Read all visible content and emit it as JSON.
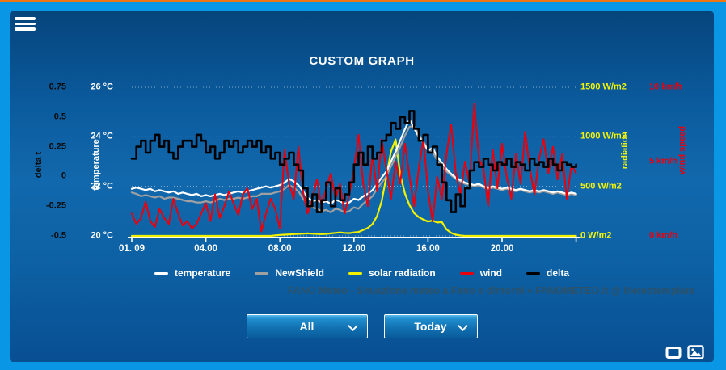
{
  "header": {
    "title": "CUSTOM GRAPH",
    "menu_icon": "hamburger-icon"
  },
  "attribution": {
    "text": "FANO Meteo - Situazione meteo a Fano e dintorni » FANOMETEO.it @ Meteotemplate"
  },
  "controls": {
    "filter_dropdown": {
      "value": "All"
    },
    "range_dropdown": {
      "value": "Today"
    }
  },
  "footer_icons": [
    {
      "name": "window-embed-icon"
    },
    {
      "name": "image-export-icon"
    }
  ],
  "colors": {
    "frame": "#0996e4",
    "top_accent": "#ec7612",
    "panel_mid": "#1268ac",
    "temperature": "#ffffff",
    "newshield": "#a0a0a0",
    "solar": "#f2f200",
    "wind": "#e8000d",
    "delta": "#000000",
    "attribution": "#32505f"
  },
  "legend": {
    "items": [
      {
        "label": "temperature",
        "color": "#ffffff"
      },
      {
        "label": "NewShield",
        "color": "#a0a0a0"
      },
      {
        "label": "solar radiation",
        "color": "#f2f200"
      },
      {
        "label": "wind",
        "color": "#e8000d"
      },
      {
        "label": "delta",
        "color": "#000000"
      }
    ]
  },
  "chart_data": {
    "type": "line",
    "title": "CUSTOM GRAPH",
    "x_ticks": [
      "01. 09",
      "04.00",
      "08.00",
      "12.00",
      "16.00",
      "20.00"
    ],
    "x_tick_hours": [
      0,
      4,
      8,
      12,
      16,
      20
    ],
    "x_range_hours": [
      0,
      24
    ],
    "grid": "dotted horizontal at temperature ticks",
    "legend_position": "bottom",
    "sample_start_hour": 0,
    "sample_step_minutes": 15,
    "axes": {
      "delta_t": {
        "title": "delta t",
        "side": "left",
        "color": "#0b0b0b",
        "range": [
          -0.5,
          0.75
        ],
        "ticks": [
          {
            "label": "0.75",
            "value": 0.75
          },
          {
            "label": "0.5",
            "value": 0.5
          },
          {
            "label": "0.25",
            "value": 0.25
          },
          {
            "label": "0",
            "value": 0
          },
          {
            "label": "-0.25",
            "value": -0.25
          },
          {
            "label": "-0.5",
            "value": -0.5
          }
        ]
      },
      "temperature": {
        "title": "temperature",
        "side": "left",
        "color": "#ffffff",
        "range": [
          20,
          26
        ],
        "ticks": [
          {
            "label": "26 °C",
            "value": 26
          },
          {
            "label": "24 °C",
            "value": 24
          },
          {
            "label": "22 °C",
            "value": 22
          },
          {
            "label": "20 °C",
            "value": 20
          }
        ]
      },
      "radiation": {
        "title": "radiation",
        "side": "right",
        "color": "#f5f50a",
        "range": [
          0,
          1500
        ],
        "ticks": [
          {
            "label": "1500 W/m2",
            "value": 1500
          },
          {
            "label": "1000 W/m2",
            "value": 1000
          },
          {
            "label": "500 W/m2",
            "value": 500
          },
          {
            "label": "0 W/m2",
            "value": 0
          }
        ]
      },
      "wind": {
        "title": "wind speed",
        "side": "right",
        "color": "#e8000d",
        "range": [
          0,
          10
        ],
        "ticks": [
          {
            "label": "10 km/h",
            "value": 10
          },
          {
            "label": "5 km/h",
            "value": 5
          },
          {
            "label": "0 km/h",
            "value": 0
          }
        ]
      }
    },
    "series": [
      {
        "name": "temperature",
        "axis": "temperature",
        "color": "#ffffff",
        "style": "line",
        "values": [
          21.9,
          21.95,
          21.9,
          21.85,
          21.9,
          21.8,
          21.85,
          21.8,
          21.75,
          21.8,
          21.7,
          21.75,
          21.7,
          21.65,
          21.7,
          21.6,
          21.65,
          21.6,
          21.65,
          21.7,
          21.65,
          21.7,
          21.75,
          21.8,
          21.75,
          21.8,
          21.85,
          21.9,
          21.95,
          22.0,
          21.95,
          22.0,
          22.05,
          22.15,
          22.3,
          22.2,
          22.05,
          21.8,
          21.55,
          21.4,
          21.45,
          21.35,
          21.4,
          21.3,
          21.45,
          21.4,
          21.3,
          21.35,
          21.5,
          21.45,
          21.6,
          21.7,
          21.85,
          22.1,
          22.35,
          22.6,
          23.0,
          23.4,
          23.85,
          24.3,
          24.7,
          24.35,
          24.0,
          23.75,
          23.45,
          23.55,
          23.2,
          22.95,
          22.7,
          22.5,
          22.35,
          22.25,
          22.15,
          22.1,
          22.05,
          22.1,
          22.0,
          21.95,
          22.0,
          21.95,
          21.9,
          21.95,
          21.9,
          21.85,
          21.9,
          21.85,
          21.8,
          21.85,
          21.8,
          21.85,
          21.8,
          21.75,
          21.8,
          21.75,
          21.7,
          21.75,
          21.7
        ]
      },
      {
        "name": "NewShield",
        "axis": "temperature",
        "color": "#a0a0a0",
        "style": "line",
        "values": [
          21.75,
          21.7,
          21.6,
          21.65,
          21.6,
          21.55,
          21.6,
          21.5,
          21.55,
          21.55,
          21.5,
          21.45,
          21.4,
          21.4,
          21.35,
          21.35,
          21.4,
          21.35,
          21.4,
          21.5,
          21.45,
          21.5,
          21.5,
          21.55,
          21.5,
          21.55,
          21.6,
          21.6,
          21.7,
          21.7,
          21.7,
          21.75,
          21.8,
          21.9,
          22.05,
          21.95,
          21.8,
          21.5,
          21.3,
          21.15,
          21.1,
          21.0,
          21.05,
          20.95,
          21.1,
          21.05,
          20.95,
          21.0,
          21.15,
          21.1,
          21.3,
          21.45,
          21.6,
          21.9,
          22.15,
          22.4,
          22.8,
          23.2,
          23.6,
          24.05,
          24.4,
          24.45,
          24.1,
          23.8,
          23.5,
          23.4,
          23.05,
          22.8,
          22.6,
          22.45,
          22.3,
          22.2,
          22.1,
          22.05,
          22.0,
          22.05,
          21.95,
          21.9,
          21.95,
          21.9,
          21.85,
          21.9,
          21.85,
          21.8,
          21.85,
          21.8,
          21.75,
          21.8,
          21.75,
          21.8,
          21.75,
          21.7,
          21.75,
          21.7,
          21.65,
          21.7,
          21.65
        ]
      },
      {
        "name": "solar radiation",
        "axis": "radiation",
        "color": "#f2f200",
        "style": "line",
        "values": [
          0,
          0,
          0,
          0,
          0,
          0,
          0,
          0,
          0,
          0,
          0,
          0,
          0,
          0,
          0,
          0,
          0,
          0,
          0,
          0,
          0,
          0,
          0,
          0,
          0,
          0,
          0,
          0,
          0,
          0,
          0,
          5,
          10,
          12,
          15,
          18,
          20,
          22,
          25,
          22,
          20,
          18,
          20,
          25,
          30,
          35,
          30,
          28,
          35,
          40,
          60,
          80,
          120,
          200,
          350,
          600,
          850,
          973,
          620,
          430,
          310,
          230,
          190,
          165,
          145,
          155,
          135,
          140,
          65,
          30,
          12,
          4,
          0,
          0,
          0,
          0,
          0,
          0,
          0,
          0,
          0,
          0,
          0,
          0,
          0,
          0,
          0,
          0,
          0,
          0,
          0,
          0,
          0,
          0,
          0,
          0,
          0
        ]
      },
      {
        "name": "wind",
        "axis": "wind",
        "color": "#e8000d",
        "style": "line",
        "values": [
          1.5,
          0.8,
          1.2,
          2.3,
          1.0,
          0.6,
          1.8,
          1.2,
          0.8,
          2.5,
          1.5,
          0.7,
          1.0,
          0.5,
          0.8,
          1.5,
          2.2,
          1.0,
          2.8,
          1.2,
          2.0,
          3.0,
          2.2,
          1.4,
          2.8,
          3.2,
          1.8,
          2.5,
          0.3,
          1.5,
          2.5,
          1.8,
          0.5,
          5.8,
          3.5,
          2.5,
          6.0,
          3.0,
          1.5,
          2.5,
          3.8,
          2.0,
          3.2,
          4.2,
          2.5,
          3.5,
          1.5,
          2.8,
          4.5,
          6.8,
          3.5,
          2.0,
          5.5,
          3.0,
          6.5,
          4.5,
          2.5,
          5.0,
          3.5,
          6.2,
          4.0,
          2.0,
          4.5,
          6.5,
          3.0,
          1.0,
          4.0,
          2.5,
          5.5,
          7.5,
          4.2,
          2.8,
          5.0,
          3.5,
          8.9,
          5.2,
          4.5,
          2.0,
          5.8,
          3.2,
          6.2,
          4.0,
          2.5,
          5.5,
          3.5,
          7.0,
          4.5,
          2.8,
          5.2,
          6.5,
          4.2,
          6.0,
          3.8,
          5.5,
          2.5,
          4.8,
          4.2
        ]
      },
      {
        "name": "delta",
        "axis": "delta_t",
        "color": "#000000",
        "style": "step",
        "values": [
          0.15,
          0.25,
          0.3,
          0.2,
          0.3,
          0.35,
          0.25,
          0.3,
          0.2,
          0.15,
          0.25,
          0.3,
          0.3,
          0.25,
          0.35,
          0.3,
          0.2,
          0.25,
          0.15,
          0.2,
          0.3,
          0.25,
          0.3,
          0.2,
          0.25,
          0.3,
          0.25,
          0.3,
          0.2,
          0.25,
          0.15,
          0.2,
          0.1,
          0.15,
          0.2,
          0.1,
          0.05,
          -0.1,
          -0.25,
          -0.15,
          -0.3,
          -0.2,
          -0.05,
          -0.25,
          -0.1,
          -0.2,
          -0.15,
          -0.05,
          0.1,
          0.2,
          0.1,
          0.25,
          0.15,
          0.2,
          0.3,
          0.35,
          0.45,
          0.4,
          0.5,
          0.45,
          0.55,
          0.4,
          0.3,
          0.35,
          0.2,
          0.25,
          0.1,
          -0.05,
          -0.2,
          -0.3,
          -0.15,
          -0.25,
          -0.1,
          0.05,
          0.12,
          0.08,
          0.15,
          0.1,
          0.05,
          0.12,
          0.1,
          0.15,
          0.08,
          0.12,
          0.1,
          0.05,
          0.15,
          0.1,
          0.12,
          0.08,
          0.15,
          0.1,
          0.05,
          0.12,
          0.1,
          0.08,
          0.1
        ]
      }
    ]
  }
}
